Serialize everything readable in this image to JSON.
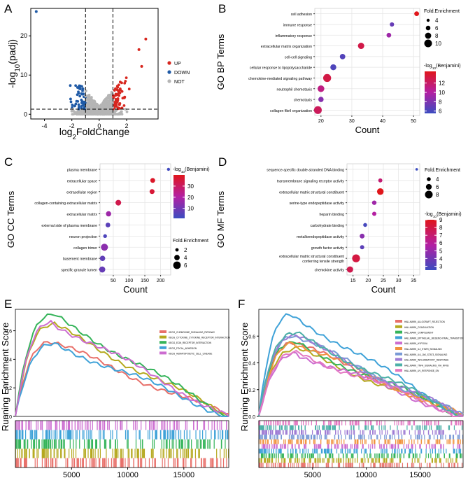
{
  "figure": {
    "colors": {
      "up": "#d7261e",
      "down": "#1f5aa6",
      "not": "#b5b5b5",
      "grid": "#e6e6e6",
      "panel": "#ffffff",
      "grad_low": "#3b4cc0",
      "grad_mid": "#b31fa3",
      "grad_high": "#e0161b",
      "gsea": [
        "#e8706a",
        "#b5a91f",
        "#35b45a",
        "#3fa2d8",
        "#cc6cd0",
        "#f1933f",
        "#7a9ad6",
        "#9e7bd4",
        "#4db0a8",
        "#e377c2"
      ]
    }
  },
  "chart_data": [
    {
      "panel": "A",
      "type": "scatter",
      "title": "",
      "xlabel": "log2FoldChange",
      "xlabel_base": "log",
      "xlabel_sub": "2",
      "xlabel_rest": "FoldChange",
      "ylabel": "-log10(padj)",
      "ylabel_pre": "-log",
      "ylabel_sub": "10",
      "ylabel_rest": "(padj)",
      "xlim": [
        -5,
        4.3
      ],
      "ylim": [
        -1.2,
        27
      ],
      "xticks": [
        -4,
        -2,
        0,
        2
      ],
      "yticks": [
        0,
        10,
        20
      ],
      "thresholds": {
        "fc": 1,
        "padj_line": 1.3
      },
      "legend": [
        "UP",
        "DOWN",
        "NOT"
      ],
      "highlight_points": [
        {
          "x": -4.6,
          "y": 26.2,
          "group": "DOWN"
        },
        {
          "x": 3.4,
          "y": 19.2,
          "group": "UP"
        },
        {
          "x": 2.9,
          "y": 16.5,
          "group": "UP"
        },
        {
          "x": 3.1,
          "y": 12.2,
          "group": "UP"
        }
      ]
    },
    {
      "panel": "B",
      "type": "scatter",
      "ylabel": "GO BP Terms",
      "xlabel": "Count",
      "xlim": [
        18,
        52
      ],
      "xticks": [
        20,
        30,
        40,
        50
      ],
      "categories": [
        "cell adhesion",
        "immune response",
        "inflammatory response",
        "extracellular matrix organization",
        "cell-cell signaling",
        "cellular response to lipopolysaccharide",
        "chemokine-mediated signaling pathway",
        "neutrophil chemotaxis",
        "chemotaxis",
        "collagen fibril organization"
      ],
      "count": [
        51,
        43,
        42,
        33,
        27,
        24,
        22,
        20,
        20,
        19
      ],
      "fold_enrichment": [
        6.2,
        5.6,
        6.1,
        8.2,
        7.1,
        7.7,
        10.3,
        8.7,
        6.9,
        10.1
      ],
      "neglog10_benjamini": [
        14.5,
        7.1,
        9.2,
        13.0,
        6.4,
        6.2,
        13.1,
        11.1,
        8.3,
        12.4
      ],
      "size_legend_title": "Fold.Enrichment",
      "size_breaks": [
        4,
        6,
        8,
        10
      ],
      "color_legend_title_pre": "-log",
      "color_legend_title_sub": "10",
      "color_legend_title_rest": "(Benjamini)",
      "color_range": [
        5.5,
        14.5
      ],
      "color_breaks": [
        6,
        8,
        10,
        12
      ]
    },
    {
      "panel": "C",
      "type": "scatter",
      "ylabel": "GO CC Terms",
      "xlabel": "Count",
      "xlim": [
        8,
        232
      ],
      "xticks": [
        50,
        100,
        150,
        200
      ],
      "categories": [
        "plasma membrane",
        "extracellular space",
        "extracellular region",
        "collagen-containing extracellular matrix",
        "extracellular matrix",
        "external side of plasma membrane",
        "neuron projection",
        "collagen trimer",
        "basement membrane",
        "specific granule lumen"
      ],
      "count": [
        225,
        175,
        173,
        66,
        35,
        33,
        24,
        22,
        16,
        15
      ],
      "fold_enrichment": [
        1.7,
        3.4,
        3.5,
        4.2,
        3.8,
        3.3,
        2.4,
        5.5,
        3.9,
        4.6
      ],
      "neglog10_benjamini": [
        2,
        38,
        36,
        33,
        17,
        6,
        4,
        14,
        7,
        8
      ],
      "size_legend_title": "Fold.Enrichment",
      "size_breaks": [
        2,
        4,
        6
      ],
      "color_legend_title_pre": "-log",
      "color_legend_title_sub": "10",
      "color_legend_title_rest": "(Benjamini)",
      "color_range": [
        1,
        40
      ],
      "color_breaks": [
        10,
        20,
        30
      ]
    },
    {
      "panel": "D",
      "type": "scatter",
      "ylabel": "GO MF Terms",
      "xlabel": "Count",
      "xlim": [
        13,
        37
      ],
      "xticks": [
        15,
        20,
        25,
        30,
        35
      ],
      "categories": [
        "sequence-specific double-stranded DNA binding",
        "transmembrane signaling receptor activity",
        "extracellular matrix structural constituent",
        "serine-type endopeptidase activity",
        "heparin binding",
        "carbohydrate binding",
        "metalloendopeptidase activity",
        "growth factor activity",
        "extracellular matrix structural constituent conferring tensile strength",
        "chemokine activity"
      ],
      "count": [
        36,
        24,
        24,
        22,
        22,
        19,
        18,
        18,
        16,
        14
      ],
      "fold_enrichment": [
        2.5,
        4.2,
        6.8,
        4.6,
        4.3,
        4.0,
        5.0,
        4.3,
        8.2,
        6.5
      ],
      "neglog10_benjamini": [
        2.2,
        6.9,
        9.0,
        5.2,
        5.8,
        2.8,
        4.6,
        3.4,
        8.1,
        7.8
      ],
      "size_legend_title": "Fold.Enrichment",
      "size_breaks": [
        4,
        6,
        8
      ],
      "color_legend_title_pre": "-log",
      "color_legend_title_sub": "10",
      "color_legend_title_rest": "(Benjamini)",
      "color_range": [
        2.5,
        9
      ],
      "color_breaks": [
        3,
        4,
        5,
        6,
        7,
        8,
        9
      ]
    },
    {
      "panel": "E",
      "type": "line",
      "ylabel": "Running Enrichment Score",
      "xlim": [
        0,
        19000
      ],
      "ylim": [
        0,
        0.75
      ],
      "xticks": [
        5000,
        10000,
        15000
      ],
      "yticks": [
        0.0,
        0.2,
        0.4,
        0.6
      ],
      "series": [
        {
          "name": "KEGG_CHEMOKINE_SIGNALING_PATHWAY",
          "peak_x": 3200,
          "peak": 0.52
        },
        {
          "name": "KEGG_CYTOKINE_CYTOKINE_RECEPTOR_INTERACTION",
          "peak_x": 3300,
          "peak": 0.64
        },
        {
          "name": "KEGG_ECM_RECEPTOR_INTERACTION",
          "peak_x": 3300,
          "peak": 0.71
        },
        {
          "name": "KEGG_FOCAL_ADHESION",
          "peak_x": 3500,
          "peak": 0.51
        },
        {
          "name": "KEGG_HEMATOPOIETIC_CELL_LINEAGE",
          "peak_x": 3300,
          "peak": 0.66
        }
      ]
    },
    {
      "panel": "F",
      "type": "line",
      "ylabel": "Running Enrichment Score",
      "xlim": [
        0,
        19000
      ],
      "ylim": [
        0,
        0.8
      ],
      "xticks": [
        5000,
        10000,
        15000
      ],
      "yticks": [
        0.0,
        0.2,
        0.4,
        0.6
      ],
      "series": [
        {
          "name": "HALLMARK_ALLOGRAFT_REJECTION",
          "peak_x": 3300,
          "peak": 0.55
        },
        {
          "name": "HALLMARK_COAGULATION",
          "peak_x": 3400,
          "peak": 0.5
        },
        {
          "name": "HALLMARK_COMPLEMENT",
          "peak_x": 3200,
          "peak": 0.55
        },
        {
          "name": "HALLMARK_EPITHELIAL_MESENCHYMAL_TRANSITION",
          "peak_x": 3000,
          "peak": 0.76
        },
        {
          "name": "HALLMARK_HYPOXIA",
          "peak_x": 3600,
          "peak": 0.47
        },
        {
          "name": "HALLMARK_IL2_STAT5_SIGNALING",
          "peak_x": 3400,
          "peak": 0.55
        },
        {
          "name": "HALLMARK_IL6_JAK_STAT3_SIGNALING",
          "peak_x": 3300,
          "peak": 0.6
        },
        {
          "name": "HALLMARK_INFLAMMATORY_RESPONSE",
          "peak_x": 3300,
          "peak": 0.6
        },
        {
          "name": "HALLMARK_TNFA_SIGNALING_VIA_NFKB",
          "peak_x": 3300,
          "peak": 0.62
        },
        {
          "name": "HALLMARK_UV_RESPONSE_DN",
          "peak_x": 3500,
          "peak": 0.48
        }
      ]
    }
  ]
}
